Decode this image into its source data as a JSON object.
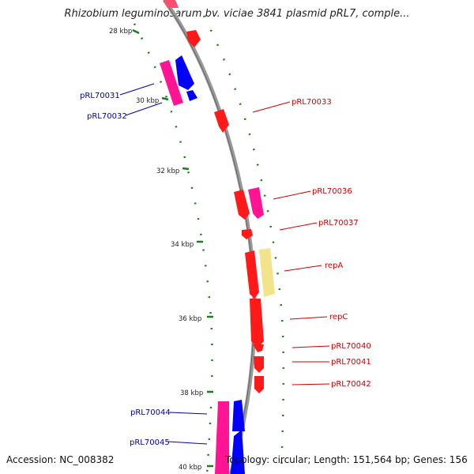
{
  "title": "Rhizobium leguminosarum bv. viciae 3841 plasmid pRL7, comple...",
  "footer": {
    "accession": "Accession: NC_008382",
    "summary": "Topology: circular; Length: 151,564 bp; Genes: 156"
  },
  "ticks": [
    "28 kbp",
    "30 kbp",
    "32 kbp",
    "34 kbp",
    "36 kbp",
    "38 kbp",
    "40 kbp"
  ],
  "labels": {
    "forward": [
      "pRL70033",
      "pRL70036",
      "pRL70037",
      "repA",
      "repC",
      "pRL70040",
      "pRL70041",
      "pRL70042"
    ],
    "reverse": [
      "pRL70031",
      "pRL70032",
      "pRL70044",
      "pRL70045"
    ]
  },
  "colors": {
    "backbone": "#888888",
    "forward_cds": "#ff0000",
    "reverse_cds": "#0000ff",
    "other_forward": "#ff1493",
    "regulatory": "#f0e68c",
    "dotted_ring": "#008000",
    "label_forward": "#d00000",
    "label_reverse": "#0000aa"
  }
}
